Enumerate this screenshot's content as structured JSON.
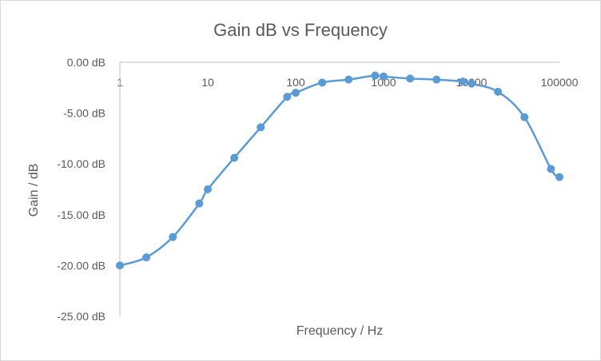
{
  "chart_data": {
    "type": "scatter",
    "title": "Gain dB vs Frequency",
    "xlabel": "Frequency / Hz",
    "ylabel": "Gain / dB",
    "x_scale": "log",
    "xlim": [
      1,
      100000
    ],
    "ylim": [
      -25,
      0
    ],
    "x_ticks": [
      "1",
      "10",
      "100",
      "1000",
      "10000",
      "100000"
    ],
    "y_ticks": [
      "0.00 dB",
      "-5.00 dB",
      "-10.00 dB",
      "-15.00 dB",
      "-20.00 dB",
      "-25.00 dB"
    ],
    "x_axis_position": "top",
    "grid": false,
    "legend": "none",
    "line_style": "smooth",
    "color": "#5b9bd5",
    "series": [
      {
        "x": [
          1,
          2,
          4,
          8,
          10,
          20,
          40,
          80,
          100,
          200,
          400,
          800,
          1000,
          2000,
          4000,
          8000,
          10000,
          20000,
          40000,
          80000,
          100000
        ],
        "y": [
          -20.0,
          -19.2,
          -17.2,
          -13.9,
          -12.5,
          -9.4,
          -6.4,
          -3.4,
          -3.0,
          -2.0,
          -1.7,
          -1.3,
          -1.4,
          -1.6,
          -1.7,
          -1.9,
          -2.1,
          -2.9,
          -5.4,
          -10.5,
          -11.3
        ]
      }
    ]
  }
}
